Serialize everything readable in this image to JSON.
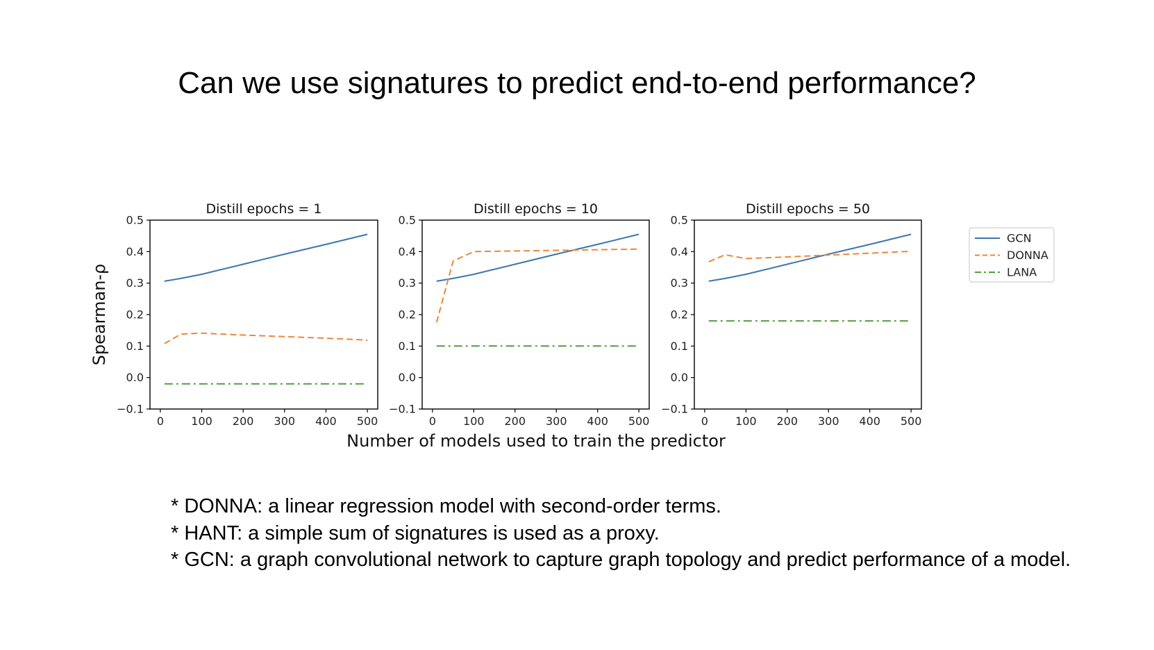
{
  "slide": {
    "title": "Can we use signatures to predict end-to-end performance?",
    "notes": [
      "* DONNA: a linear regression model with second-order terms.",
      "* HANT: a simple sum of signatures is used as a proxy.",
      "* GCN: a graph convolutional network to capture graph topology and predict performance of a model."
    ]
  },
  "shared_axes": {
    "ylabel": "Spearman-ρ",
    "xlabel": "Number of models used to train the predictor"
  },
  "legend": {
    "placement": "right",
    "entries": [
      {
        "name": "GCN",
        "color": "#3b75af",
        "style": "solid"
      },
      {
        "name": "DONNA",
        "color": "#ef8636",
        "style": "dashed"
      },
      {
        "name": "LANA",
        "color": "#519e3e",
        "style": "dashdot"
      }
    ]
  },
  "chart_data": [
    {
      "type": "line",
      "title": "Distill epochs = 1",
      "xlim": [
        -25,
        525
      ],
      "ylim": [
        -0.1,
        0.5
      ],
      "xticks": [
        0,
        100,
        200,
        300,
        400,
        500
      ],
      "yticks": [
        -0.1,
        0.0,
        0.1,
        0.2,
        0.3,
        0.4,
        0.5
      ],
      "xtick_labels": [
        "0",
        "100",
        "200",
        "300",
        "400",
        "500"
      ],
      "ytick_labels": [
        "−0.1",
        "0.0",
        "0.1",
        "0.2",
        "0.3",
        "0.4",
        "0.5"
      ],
      "grid": false,
      "series": [
        {
          "name": "GCN",
          "x": [
            10,
            50,
            100,
            200,
            300,
            400,
            500
          ],
          "y": [
            0.306,
            0.315,
            0.328,
            0.36,
            0.392,
            0.423,
            0.455
          ]
        },
        {
          "name": "DONNA",
          "x": [
            10,
            50,
            100,
            200,
            300,
            400,
            500
          ],
          "y": [
            0.108,
            0.138,
            0.141,
            0.135,
            0.13,
            0.125,
            0.119
          ]
        },
        {
          "name": "LANA",
          "x": [
            10,
            500
          ],
          "y": [
            -0.02,
            -0.02
          ]
        }
      ]
    },
    {
      "type": "line",
      "title": "Distill epochs = 10",
      "xlim": [
        -25,
        525
      ],
      "ylim": [
        -0.1,
        0.5
      ],
      "xticks": [
        0,
        100,
        200,
        300,
        400,
        500
      ],
      "yticks": [
        -0.1,
        0.0,
        0.1,
        0.2,
        0.3,
        0.4,
        0.5
      ],
      "xtick_labels": [
        "0",
        "100",
        "200",
        "300",
        "400",
        "500"
      ],
      "ytick_labels": [
        "−0.1",
        "0.0",
        "0.1",
        "0.2",
        "0.3",
        "0.4",
        "0.5"
      ],
      "grid": false,
      "series": [
        {
          "name": "GCN",
          "x": [
            10,
            50,
            100,
            200,
            300,
            400,
            500
          ],
          "y": [
            0.306,
            0.315,
            0.328,
            0.36,
            0.392,
            0.423,
            0.455
          ]
        },
        {
          "name": "DONNA",
          "x": [
            10,
            50,
            100,
            200,
            300,
            400,
            500
          ],
          "y": [
            0.175,
            0.37,
            0.4,
            0.402,
            0.404,
            0.406,
            0.408
          ]
        },
        {
          "name": "LANA",
          "x": [
            10,
            500
          ],
          "y": [
            0.1,
            0.1
          ]
        }
      ]
    },
    {
      "type": "line",
      "title": "Distill epochs = 50",
      "xlim": [
        -25,
        525
      ],
      "ylim": [
        -0.1,
        0.5
      ],
      "xticks": [
        0,
        100,
        200,
        300,
        400,
        500
      ],
      "yticks": [
        -0.1,
        0.0,
        0.1,
        0.2,
        0.3,
        0.4,
        0.5
      ],
      "xtick_labels": [
        "0",
        "100",
        "200",
        "300",
        "400",
        "500"
      ],
      "ytick_labels": [
        "−0.1",
        "0.0",
        "0.1",
        "0.2",
        "0.3",
        "0.4",
        "0.5"
      ],
      "grid": false,
      "series": [
        {
          "name": "GCN",
          "x": [
            10,
            50,
            100,
            200,
            300,
            400,
            500
          ],
          "y": [
            0.306,
            0.315,
            0.328,
            0.36,
            0.392,
            0.423,
            0.455
          ]
        },
        {
          "name": "DONNA",
          "x": [
            10,
            50,
            100,
            200,
            300,
            400,
            500
          ],
          "y": [
            0.368,
            0.39,
            0.378,
            0.383,
            0.389,
            0.395,
            0.401
          ]
        },
        {
          "name": "LANA",
          "x": [
            10,
            500
          ],
          "y": [
            0.18,
            0.18
          ]
        }
      ]
    }
  ]
}
